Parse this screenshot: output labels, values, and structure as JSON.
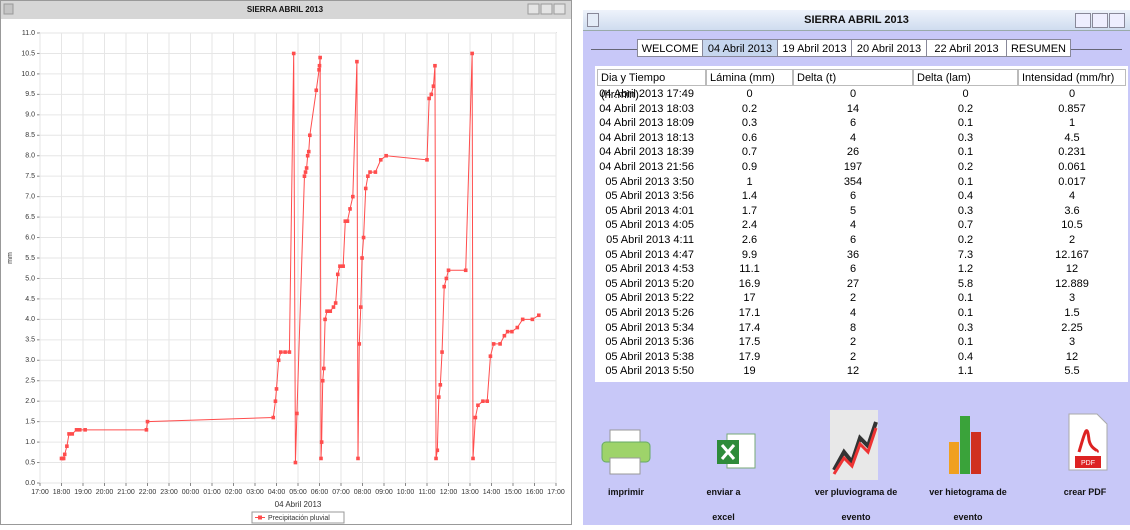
{
  "chart_window": {
    "title": "SIERRA ABRIL 2013"
  },
  "chart_data": {
    "type": "line",
    "xlabel": "04 Abril 2013",
    "ylabel": "mm",
    "x": [
      1.0,
      1.05,
      1.1,
      1.15,
      1.25,
      1.35,
      1.5,
      1.7,
      1.85,
      2.1,
      4.95,
      5.0,
      10.85,
      10.95,
      11.0,
      11.1,
      11.2,
      11.4,
      11.6,
      11.8,
      11.88,
      11.95,
      12.3,
      12.35,
      12.4,
      12.45,
      12.5,
      12.55,
      12.85,
      12.98,
      13.0,
      13.03,
      13.07,
      13.1,
      13.15,
      13.2,
      13.26,
      13.35,
      13.5,
      13.65,
      13.75,
      13.85,
      13.95,
      14.1,
      14.2,
      14.3,
      14.42,
      14.55,
      14.74,
      14.79,
      14.85,
      14.92,
      14.98,
      15.05,
      15.15,
      15.25,
      15.35,
      15.6,
      15.85,
      16.1,
      18.0,
      18.1,
      18.2,
      18.3,
      18.37,
      18.42,
      18.48,
      18.55,
      18.62,
      18.7,
      18.8,
      18.9,
      19.0,
      19.8,
      20.1,
      20.14,
      20.25,
      20.37,
      20.6,
      20.8,
      20.95,
      21.1,
      21.4,
      21.6,
      21.75,
      21.95,
      22.2,
      22.45,
      22.9,
      23.2
    ],
    "series": [
      {
        "name": "Precipitación pluvial",
        "color": "#ff4d4d",
        "values": [
          0.6,
          0.6,
          0.6,
          0.7,
          0.9,
          1.2,
          1.2,
          1.3,
          1.3,
          1.3,
          1.3,
          1.5,
          1.6,
          2.0,
          2.3,
          3.0,
          3.2,
          3.2,
          3.2,
          10.5,
          0.5,
          1.7,
          7.5,
          7.6,
          7.7,
          8.0,
          8.1,
          8.5,
          9.6,
          10.1,
          10.2,
          10.4,
          0.6,
          1.0,
          2.5,
          2.8,
          4.0,
          4.2,
          4.2,
          4.3,
          4.4,
          5.1,
          5.3,
          5.3,
          6.4,
          6.4,
          6.7,
          7.0,
          10.3,
          0.6,
          3.4,
          4.3,
          5.5,
          6.0,
          7.2,
          7.5,
          7.6,
          7.6,
          7.9,
          8.0,
          7.9,
          9.4,
          9.5,
          9.7,
          10.2,
          0.6,
          0.8,
          2.1,
          2.4,
          3.2,
          4.8,
          5.0,
          5.2,
          5.2,
          10.5,
          0.6,
          1.6,
          1.9,
          2.0,
          2.0,
          3.1,
          3.4,
          3.4,
          3.6,
          3.7,
          3.7,
          3.8,
          4.0,
          4.0,
          4.1
        ]
      }
    ],
    "xlim": [
      0,
      24
    ],
    "xticks": [
      {
        "value": 0,
        "label": "17:00"
      },
      {
        "value": 1,
        "label": "18:00"
      },
      {
        "value": 2,
        "label": "19:00"
      },
      {
        "value": 3,
        "label": "20:00"
      },
      {
        "value": 4,
        "label": "21:00"
      },
      {
        "value": 5,
        "label": "22:00"
      },
      {
        "value": 6,
        "label": "23:00"
      },
      {
        "value": 7,
        "label": "00:00"
      },
      {
        "value": 8,
        "label": "01:00"
      },
      {
        "value": 9,
        "label": "02:00"
      },
      {
        "value": 10,
        "label": "03:00"
      },
      {
        "value": 11,
        "label": "04:00"
      },
      {
        "value": 12,
        "label": "05:00"
      },
      {
        "value": 13,
        "label": "06:00"
      },
      {
        "value": 14,
        "label": "07:00"
      },
      {
        "value": 15,
        "label": "08:00"
      },
      {
        "value": 16,
        "label": "09:00"
      },
      {
        "value": 17,
        "label": "10:00"
      },
      {
        "value": 18,
        "label": "11:00"
      },
      {
        "value": 19,
        "label": "12:00"
      },
      {
        "value": 20,
        "label": "13:00"
      },
      {
        "value": 21,
        "label": "14:00"
      },
      {
        "value": 22,
        "label": "15:00"
      },
      {
        "value": 23,
        "label": "16:00"
      },
      {
        "value": 24,
        "label": "17:00"
      }
    ],
    "ylim": [
      0,
      11
    ],
    "yticks": [
      {
        "value": 0,
        "label": "0.0"
      },
      {
        "value": 0.5,
        "label": "0.5"
      },
      {
        "value": 1,
        "label": "1.0"
      },
      {
        "value": 1.5,
        "label": "1.5"
      },
      {
        "value": 2,
        "label": "2.0"
      },
      {
        "value": 2.5,
        "label": "2.5"
      },
      {
        "value": 3,
        "label": "3.0"
      },
      {
        "value": 3.5,
        "label": "3.5"
      },
      {
        "value": 4,
        "label": "4.0"
      },
      {
        "value": 4.5,
        "label": "4.5"
      },
      {
        "value": 5,
        "label": "5.0"
      },
      {
        "value": 5.5,
        "label": "5.5"
      },
      {
        "value": 6,
        "label": "6.0"
      },
      {
        "value": 6.5,
        "label": "6.5"
      },
      {
        "value": 7,
        "label": "7.0"
      },
      {
        "value": 7.5,
        "label": "7.5"
      },
      {
        "value": 8,
        "label": "8.0"
      },
      {
        "value": 8.5,
        "label": "8.5"
      },
      {
        "value": 9,
        "label": "9.0"
      },
      {
        "value": 9.5,
        "label": "9.5"
      },
      {
        "value": 10,
        "label": "10.0"
      },
      {
        "value": 10.5,
        "label": "10.5"
      },
      {
        "value": 11,
        "label": "11.0"
      }
    ],
    "grid": true,
    "legend": "bottom"
  },
  "table_window": {
    "title": "SIERRA ABRIL 2013",
    "tabs": [
      "WELCOME",
      "04 Abril 2013",
      "19 Abril 2013",
      "20 Abril 2013",
      "22 Abril 2013",
      "RESUMEN"
    ],
    "active_tab": 1,
    "table": {
      "columns": [
        "Dia y Tiempo (hr:min)",
        "Lámina (mm)",
        "Delta (t)",
        "Delta (lam)",
        "Intensidad (mm/hr)"
      ],
      "rows": [
        [
          "04 Abril 2013 17:49",
          "0",
          "0",
          "0",
          "0"
        ],
        [
          "04 Abril 2013 18:03",
          "0.2",
          "14",
          "0.2",
          "0.857"
        ],
        [
          "04 Abril 2013 18:09",
          "0.3",
          "6",
          "0.1",
          "1"
        ],
        [
          "04 Abril 2013 18:13",
          "0.6",
          "4",
          "0.3",
          "4.5"
        ],
        [
          "04 Abril 2013 18:39",
          "0.7",
          "26",
          "0.1",
          "0.231"
        ],
        [
          "04 Abril 2013 21:56",
          "0.9",
          "197",
          "0.2",
          "0.061"
        ],
        [
          "05 Abril 2013 3:50",
          "1",
          "354",
          "0.1",
          "0.017"
        ],
        [
          "05 Abril 2013 3:56",
          "1.4",
          "6",
          "0.4",
          "4"
        ],
        [
          "05 Abril 2013 4:01",
          "1.7",
          "5",
          "0.3",
          "3.6"
        ],
        [
          "05 Abril 2013 4:05",
          "2.4",
          "4",
          "0.7",
          "10.5"
        ],
        [
          "05 Abril 2013 4:11",
          "2.6",
          "6",
          "0.2",
          "2"
        ],
        [
          "05 Abril 2013 4:47",
          "9.9",
          "36",
          "7.3",
          "12.167"
        ],
        [
          "05 Abril 2013 4:53",
          "11.1",
          "6",
          "1.2",
          "12"
        ],
        [
          "05 Abril 2013 5:20",
          "16.9",
          "27",
          "5.8",
          "12.889"
        ],
        [
          "05 Abril 2013 5:22",
          "17",
          "2",
          "0.1",
          "3"
        ],
        [
          "05 Abril 2013 5:26",
          "17.1",
          "4",
          "0.1",
          "1.5"
        ],
        [
          "05 Abril 2013 5:34",
          "17.4",
          "8",
          "0.3",
          "2.25"
        ],
        [
          "05 Abril 2013 5:36",
          "17.5",
          "2",
          "0.1",
          "3"
        ],
        [
          "05 Abril 2013 5:38",
          "17.9",
          "2",
          "0.4",
          "12"
        ],
        [
          "05 Abril 2013 5:50",
          "19",
          "12",
          "1.1",
          "5.5"
        ]
      ]
    },
    "buttons": [
      "imprimir",
      "enviar a excel",
      "ver pluviograma de evento",
      "ver hietograma de evento",
      "crear PDF"
    ]
  }
}
